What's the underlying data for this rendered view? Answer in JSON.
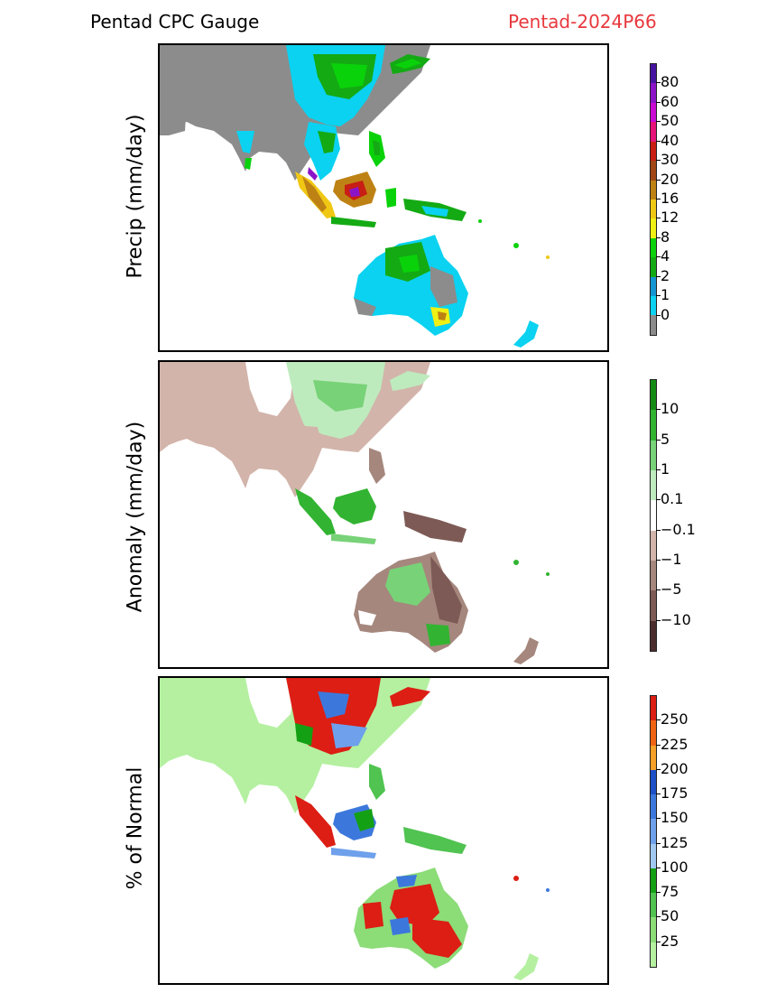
{
  "header": {
    "title": "Pentad CPC Gauge",
    "pentad": "Pentad-2024P66"
  },
  "panels": [
    {
      "ylabel": "Precip (mm/day)",
      "colorbar": {
        "colors": [
          "#8c8c8c",
          "#0ad2f0",
          "#1496d2",
          "#14aa14",
          "#0ad20a",
          "#f0f014",
          "#f0c814",
          "#be8214",
          "#a04614",
          "#c81e14",
          "#e61478",
          "#c80ad2",
          "#8c14c8",
          "#4614a0"
        ],
        "labels": [
          "0",
          "1",
          "2",
          "4",
          "8",
          "12",
          "16",
          "20",
          "30",
          "40",
          "50",
          "60",
          "80"
        ]
      }
    },
    {
      "ylabel": "Anomaly (mm/day)",
      "colorbar": {
        "colors": [
          "#4b2d2d",
          "#7d5a55",
          "#a5877d",
          "#d2b4aa",
          "#ffffff",
          "#beebbe",
          "#78d278",
          "#32b432",
          "#148c14"
        ],
        "labels": [
          "−10",
          "−5",
          "−1",
          "−0.1",
          "0.1",
          "1",
          "5",
          "10"
        ]
      }
    },
    {
      "ylabel": "% of Normal",
      "colorbar": {
        "colors": [
          "#b4f0a0",
          "#8cdc78",
          "#50c350",
          "#14a014",
          "#a0c8f0",
          "#6ea0eb",
          "#3c78dc",
          "#1e50c8",
          "#f5a028",
          "#f06414",
          "#dc1e14"
        ],
        "labels": [
          "25",
          "50",
          "75",
          "100",
          "125",
          "150",
          "175",
          "200",
          "225",
          "250"
        ]
      }
    }
  ]
}
